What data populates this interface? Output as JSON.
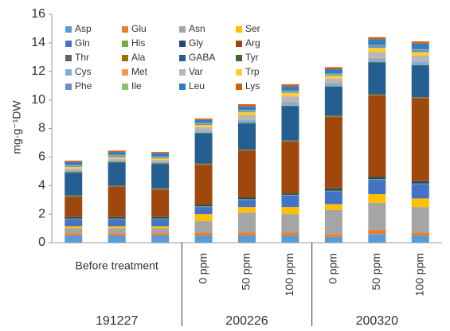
{
  "chart_data": {
    "type": "stacked_bar",
    "y_label": "mg·g⁻¹DW",
    "groups": [
      {
        "name": "191227",
        "categories": [
          null,
          "Before treatment",
          null
        ]
      },
      {
        "name": "200226",
        "categories": [
          "0 ppm",
          "50 ppm",
          "100 ppm"
        ]
      },
      {
        "name": "200320",
        "categories": [
          "0 ppm",
          "50 ppm",
          "100 ppm"
        ]
      }
    ],
    "ylim": [
      0,
      16
    ],
    "yticks": [
      0,
      2,
      4,
      6,
      8,
      10,
      12,
      14,
      16
    ],
    "legend": "top-left",
    "series": [
      {
        "name": "Asp",
        "color": "#5B9BD5",
        "values": [
          0.5,
          0.5,
          0.5,
          0.5,
          0.5,
          0.5,
          0.4,
          0.6,
          0.5
        ]
      },
      {
        "name": "Glu",
        "color": "#ED7D31",
        "values": [
          0.15,
          0.15,
          0.15,
          0.2,
          0.2,
          0.2,
          0.2,
          0.3,
          0.2
        ]
      },
      {
        "name": "Asn",
        "color": "#A5A5A5",
        "values": [
          0.35,
          0.35,
          0.35,
          0.8,
          1.4,
          1.3,
          1.7,
          1.9,
          1.8
        ]
      },
      {
        "name": "Ser",
        "color": "#FFC000",
        "values": [
          0.15,
          0.15,
          0.15,
          0.5,
          0.4,
          0.5,
          0.4,
          0.6,
          0.6
        ]
      },
      {
        "name": "Gln",
        "color": "#4472C4",
        "values": [
          0.5,
          0.5,
          0.5,
          0.5,
          0.5,
          0.8,
          0.9,
          1.0,
          1.0
        ]
      },
      {
        "name": "His",
        "color": "#70AD47",
        "values": [
          0.05,
          0.05,
          0.05,
          0.05,
          0.05,
          0.05,
          0.05,
          0.05,
          0.05
        ]
      },
      {
        "name": "Gly",
        "color": "#264478",
        "values": [
          0.1,
          0.1,
          0.1,
          0.1,
          0.1,
          0.1,
          0.15,
          0.15,
          0.15
        ]
      },
      {
        "name": "Arg",
        "color": "#9E480E",
        "values": [
          1.4,
          2.1,
          1.9,
          2.8,
          3.3,
          3.6,
          5.0,
          5.7,
          5.8
        ]
      },
      {
        "name": "Thr",
        "color": "#636363",
        "values": [
          0.05,
          0.05,
          0.05,
          0.05,
          0.05,
          0.05,
          0.05,
          0.05,
          0.05
        ]
      },
      {
        "name": "Ala",
        "color": "#997300",
        "values": [
          0.05,
          0.05,
          0.05,
          0.05,
          0.05,
          0.05,
          0.05,
          0.05,
          0.05
        ]
      },
      {
        "name": "GABA",
        "color": "#255E91",
        "values": [
          1.6,
          1.6,
          1.7,
          2.1,
          1.8,
          2.4,
          2.0,
          2.2,
          2.2
        ]
      },
      {
        "name": "Tyr",
        "color": "#43682B",
        "values": [
          0.05,
          0.05,
          0.05,
          0.05,
          0.05,
          0.05,
          0.05,
          0.05,
          0.05
        ]
      },
      {
        "name": "Cys",
        "color": "#7CAFDD",
        "values": [
          0.1,
          0.1,
          0.1,
          0.15,
          0.2,
          0.25,
          0.2,
          0.25,
          0.25
        ]
      },
      {
        "name": "Met",
        "color": "#F1975A",
        "values": [
          0.05,
          0.05,
          0.05,
          0.05,
          0.05,
          0.05,
          0.05,
          0.05,
          0.05
        ]
      },
      {
        "name": "Var",
        "color": "#B7B7B7",
        "values": [
          0.1,
          0.1,
          0.1,
          0.2,
          0.3,
          0.35,
          0.3,
          0.4,
          0.35
        ]
      },
      {
        "name": "Trp",
        "color": "#FFCD33",
        "values": [
          0.1,
          0.1,
          0.1,
          0.15,
          0.2,
          0.25,
          0.2,
          0.3,
          0.25
        ]
      },
      {
        "name": "Phe",
        "color": "#698ED0",
        "values": [
          0.1,
          0.1,
          0.1,
          0.1,
          0.1,
          0.1,
          0.1,
          0.15,
          0.15
        ]
      },
      {
        "name": "Ile",
        "color": "#8CC168",
        "values": [
          0.05,
          0.05,
          0.05,
          0.05,
          0.05,
          0.05,
          0.05,
          0.05,
          0.05
        ]
      },
      {
        "name": "Leu",
        "color": "#327DC2",
        "values": [
          0.2,
          0.2,
          0.2,
          0.2,
          0.25,
          0.3,
          0.3,
          0.4,
          0.4
        ]
      },
      {
        "name": "Lys",
        "color": "#D26012",
        "values": [
          0.1,
          0.1,
          0.1,
          0.1,
          0.15,
          0.15,
          0.15,
          0.15,
          0.15
        ]
      }
    ]
  }
}
